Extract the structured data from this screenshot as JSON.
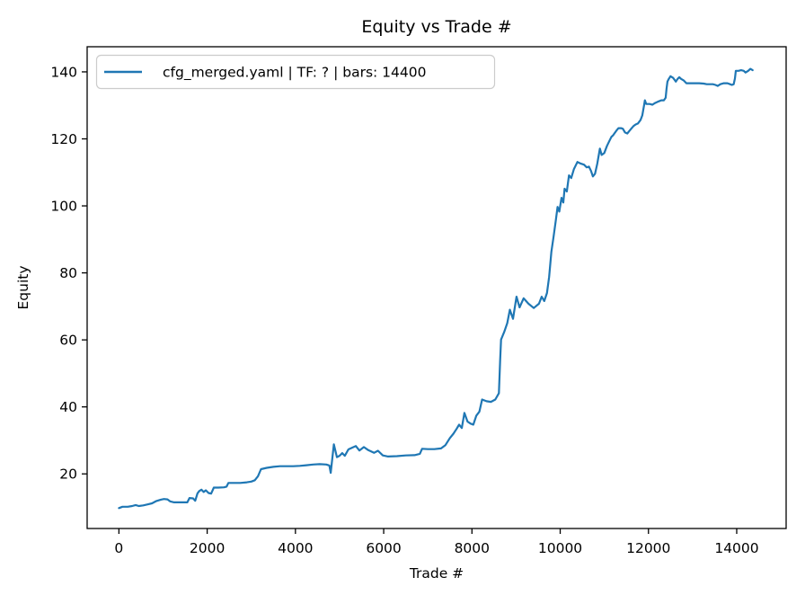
{
  "chart_data": {
    "type": "line",
    "title": "Equity vs Trade #",
    "xlabel": "Trade #",
    "ylabel": "Equity",
    "legend_label": "cfg_merged.yaml | TF: ? | bars: 14400",
    "legend_position": "upper left",
    "grid": false,
    "xlim": [
      -720,
      15120
    ],
    "ylim": [
      3.7,
      147.5
    ],
    "x_ticks": [
      0,
      2000,
      4000,
      6000,
      8000,
      10000,
      12000,
      14000
    ],
    "y_ticks": [
      20,
      40,
      60,
      80,
      100,
      120,
      140
    ],
    "line_color": "#1f77b4",
    "series": [
      {
        "name": "cfg_merged.yaml | TF: ? | bars: 14400",
        "points": [
          [
            0,
            9.8
          ],
          [
            80,
            10.2
          ],
          [
            200,
            10.2
          ],
          [
            300,
            10.4
          ],
          [
            380,
            10.7
          ],
          [
            450,
            10.4
          ],
          [
            550,
            10.6
          ],
          [
            650,
            10.9
          ],
          [
            750,
            11.2
          ],
          [
            850,
            11.9
          ],
          [
            950,
            12.3
          ],
          [
            1020,
            12.5
          ],
          [
            1100,
            12.4
          ],
          [
            1160,
            11.8
          ],
          [
            1250,
            11.5
          ],
          [
            1400,
            11.5
          ],
          [
            1550,
            11.5
          ],
          [
            1600,
            12.8
          ],
          [
            1680,
            12.7
          ],
          [
            1730,
            12.0
          ],
          [
            1780,
            14.2
          ],
          [
            1820,
            14.9
          ],
          [
            1870,
            15.3
          ],
          [
            1920,
            14.6
          ],
          [
            1970,
            15.1
          ],
          [
            2030,
            14.3
          ],
          [
            2090,
            14.1
          ],
          [
            2150,
            15.9
          ],
          [
            2250,
            15.9
          ],
          [
            2380,
            16.0
          ],
          [
            2440,
            16.2
          ],
          [
            2480,
            17.3
          ],
          [
            2600,
            17.3
          ],
          [
            2750,
            17.3
          ],
          [
            2900,
            17.5
          ],
          [
            3000,
            17.7
          ],
          [
            3080,
            18.1
          ],
          [
            3150,
            19.3
          ],
          [
            3220,
            21.4
          ],
          [
            3350,
            21.8
          ],
          [
            3500,
            22.1
          ],
          [
            3650,
            22.3
          ],
          [
            3800,
            22.3
          ],
          [
            3950,
            22.3
          ],
          [
            4100,
            22.4
          ],
          [
            4250,
            22.6
          ],
          [
            4400,
            22.8
          ],
          [
            4550,
            22.9
          ],
          [
            4700,
            22.8
          ],
          [
            4770,
            22.5
          ],
          [
            4800,
            20.3
          ],
          [
            4870,
            28.8
          ],
          [
            4940,
            25.0
          ],
          [
            5000,
            25.4
          ],
          [
            5060,
            26.2
          ],
          [
            5120,
            25.4
          ],
          [
            5200,
            27.3
          ],
          [
            5300,
            27.9
          ],
          [
            5370,
            28.3
          ],
          [
            5450,
            27.0
          ],
          [
            5550,
            28.0
          ],
          [
            5650,
            27.1
          ],
          [
            5780,
            26.3
          ],
          [
            5870,
            26.9
          ],
          [
            5980,
            25.5
          ],
          [
            6100,
            25.2
          ],
          [
            6300,
            25.3
          ],
          [
            6500,
            25.5
          ],
          [
            6700,
            25.6
          ],
          [
            6820,
            26.0
          ],
          [
            6870,
            27.5
          ],
          [
            7000,
            27.4
          ],
          [
            7150,
            27.4
          ],
          [
            7300,
            27.6
          ],
          [
            7400,
            28.6
          ],
          [
            7500,
            30.7
          ],
          [
            7580,
            32.0
          ],
          [
            7650,
            33.4
          ],
          [
            7710,
            34.7
          ],
          [
            7770,
            33.7
          ],
          [
            7830,
            38.2
          ],
          [
            7900,
            35.6
          ],
          [
            7970,
            35.0
          ],
          [
            8030,
            34.7
          ],
          [
            8100,
            37.4
          ],
          [
            8170,
            38.6
          ],
          [
            8230,
            42.2
          ],
          [
            8330,
            41.7
          ],
          [
            8430,
            41.5
          ],
          [
            8530,
            42.2
          ],
          [
            8610,
            44.1
          ],
          [
            8640,
            54.0
          ],
          [
            8660,
            60.1
          ],
          [
            8730,
            62.3
          ],
          [
            8800,
            65.0
          ],
          [
            8860,
            69.0
          ],
          [
            8930,
            66.3
          ],
          [
            9010,
            72.9
          ],
          [
            9080,
            69.7
          ],
          [
            9170,
            72.4
          ],
          [
            9280,
            70.8
          ],
          [
            9400,
            69.5
          ],
          [
            9520,
            70.8
          ],
          [
            9580,
            72.9
          ],
          [
            9640,
            71.6
          ],
          [
            9700,
            74.0
          ],
          [
            9750,
            78.8
          ],
          [
            9800,
            86.3
          ],
          [
            9850,
            90.9
          ],
          [
            9900,
            95.6
          ],
          [
            9940,
            99.7
          ],
          [
            9980,
            98.3
          ],
          [
            10030,
            102.4
          ],
          [
            10070,
            101.0
          ],
          [
            10100,
            105.1
          ],
          [
            10150,
            104.3
          ],
          [
            10200,
            109.1
          ],
          [
            10250,
            108.3
          ],
          [
            10310,
            111.0
          ],
          [
            10390,
            113.1
          ],
          [
            10470,
            112.6
          ],
          [
            10540,
            112.3
          ],
          [
            10600,
            111.5
          ],
          [
            10650,
            111.7
          ],
          [
            10700,
            110.4
          ],
          [
            10740,
            108.8
          ],
          [
            10790,
            109.6
          ],
          [
            10840,
            112.6
          ],
          [
            10900,
            117.1
          ],
          [
            10940,
            115.2
          ],
          [
            11000,
            115.8
          ],
          [
            11060,
            117.9
          ],
          [
            11100,
            119.0
          ],
          [
            11160,
            120.6
          ],
          [
            11200,
            121.1
          ],
          [
            11270,
            122.4
          ],
          [
            11320,
            123.2
          ],
          [
            11380,
            123.2
          ],
          [
            11420,
            123.0
          ],
          [
            11470,
            121.9
          ],
          [
            11520,
            121.6
          ],
          [
            11570,
            122.4
          ],
          [
            11620,
            123.2
          ],
          [
            11660,
            123.8
          ],
          [
            11710,
            124.3
          ],
          [
            11760,
            124.6
          ],
          [
            11820,
            125.6
          ],
          [
            11860,
            127.0
          ],
          [
            11900,
            129.9
          ],
          [
            11920,
            131.5
          ],
          [
            11950,
            130.4
          ],
          [
            12030,
            130.4
          ],
          [
            12090,
            130.2
          ],
          [
            12150,
            130.7
          ],
          [
            12230,
            131.2
          ],
          [
            12290,
            131.5
          ],
          [
            12350,
            131.5
          ],
          [
            12390,
            132.3
          ],
          [
            12410,
            135.0
          ],
          [
            12430,
            137.1
          ],
          [
            12460,
            137.9
          ],
          [
            12500,
            138.7
          ],
          [
            12560,
            138.2
          ],
          [
            12620,
            137.1
          ],
          [
            12660,
            137.9
          ],
          [
            12700,
            138.4
          ],
          [
            12740,
            137.9
          ],
          [
            12800,
            137.4
          ],
          [
            12860,
            136.6
          ],
          [
            12950,
            136.6
          ],
          [
            13050,
            136.6
          ],
          [
            13150,
            136.6
          ],
          [
            13250,
            136.5
          ],
          [
            13320,
            136.3
          ],
          [
            13400,
            136.3
          ],
          [
            13460,
            136.3
          ],
          [
            13520,
            136.1
          ],
          [
            13570,
            135.8
          ],
          [
            13630,
            136.3
          ],
          [
            13710,
            136.6
          ],
          [
            13790,
            136.6
          ],
          [
            13850,
            136.3
          ],
          [
            13890,
            136.1
          ],
          [
            13930,
            136.3
          ],
          [
            13960,
            138.0
          ],
          [
            13980,
            140.3
          ],
          [
            14040,
            140.3
          ],
          [
            14100,
            140.5
          ],
          [
            14160,
            140.3
          ],
          [
            14200,
            139.8
          ],
          [
            14260,
            140.3
          ],
          [
            14310,
            140.9
          ],
          [
            14360,
            140.5
          ]
        ]
      }
    ]
  },
  "colors": {
    "line": "#1f77b4",
    "text": "#000000",
    "spine": "#000000",
    "legend_border": "#cccccc",
    "background": "#ffffff"
  }
}
